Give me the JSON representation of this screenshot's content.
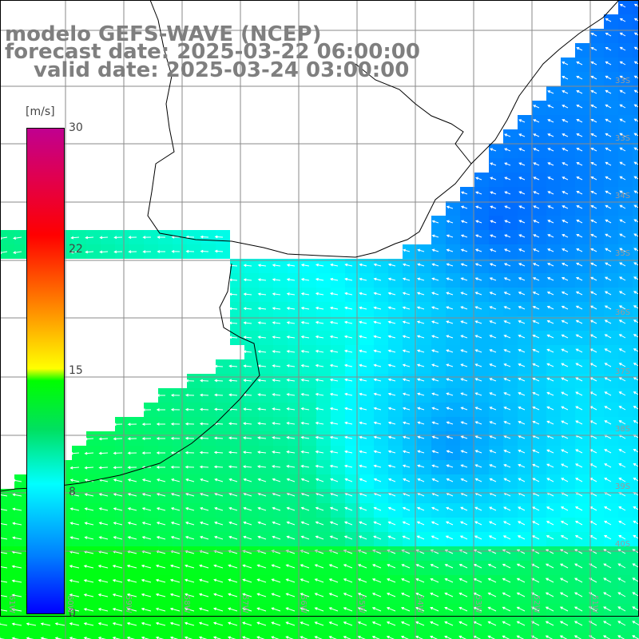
{
  "title": {
    "line1": "modelo GEFS-WAVE (NCEP)",
    "line2": "forecast date: 2025-03-22 06:00:00",
    "line3": "valid date: 2025-03-24 03:00:00"
  },
  "colorbar": {
    "unit": "[m/s]",
    "min": 0,
    "max": 30,
    "tick_labels": [
      "30",
      "22",
      "15",
      "8",
      "0"
    ]
  },
  "lat_labels": [
    "33S",
    "33S",
    "34S",
    "35S",
    "36S",
    "37S",
    "38S",
    "39S",
    "40S"
  ],
  "lon_labels": [
    "61W",
    "60W",
    "59W",
    "58W",
    "57W",
    "56W",
    "55W",
    "54W",
    "53W",
    "52W",
    "51W"
  ],
  "colors": {
    "ocean_low": "#0033ff",
    "ocean_mid": "#00ffff",
    "ocean_high": "#00ff00",
    "land": "#ffffff",
    "grid": "#9a9a9a",
    "coast": "#000000",
    "title": "#7f7f7f"
  }
}
